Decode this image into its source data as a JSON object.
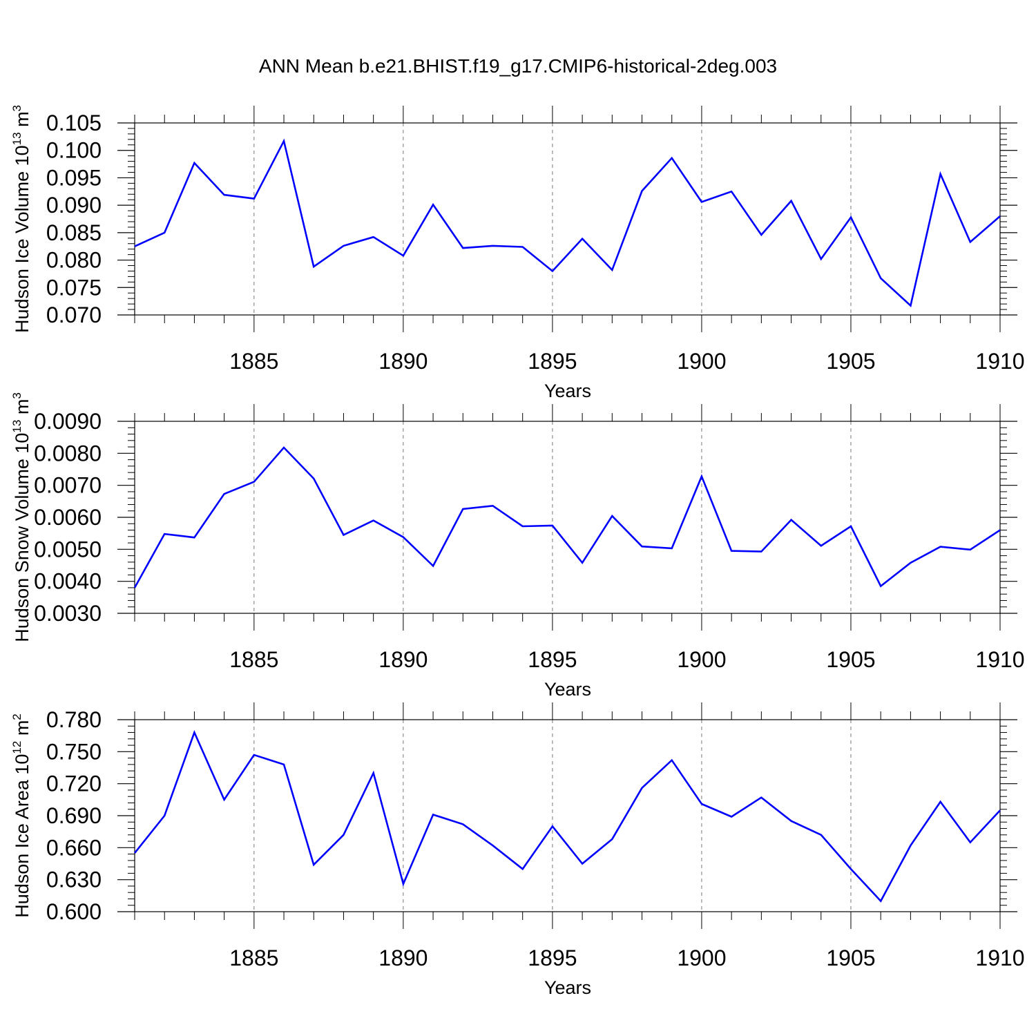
{
  "title": "ANN Mean b.e21.BHIST.f19_g17.CMIP6-historical-2deg.003",
  "colors": {
    "line": "#0000ff",
    "axis": "#000000",
    "grid": "#777777"
  },
  "chart_data": [
    {
      "type": "line",
      "title": "",
      "xlabel": "Years",
      "ylabel_main": "Hudson Ice Volume 10",
      "ylabel_exp": "13",
      "ylabel_unit": "m",
      "ylabel_unit_exp": "3",
      "xlim": [
        1881,
        1910
      ],
      "ylim": [
        0.07,
        0.105
      ],
      "yticks": [
        "0.070",
        "0.075",
        "0.080",
        "0.085",
        "0.090",
        "0.095",
        "0.100",
        "0.105"
      ],
      "ytick_values": [
        0.07,
        0.075,
        0.08,
        0.085,
        0.09,
        0.095,
        0.1,
        0.105
      ],
      "xticks": [
        "1885",
        "1890",
        "1895",
        "1900",
        "1905",
        "1910"
      ],
      "xtick_values": [
        1885,
        1890,
        1895,
        1900,
        1905,
        1910
      ],
      "grid": "vertical dashed at major x ticks",
      "x": [
        1881,
        1882,
        1883,
        1884,
        1885,
        1886,
        1887,
        1888,
        1889,
        1890,
        1891,
        1892,
        1893,
        1894,
        1895,
        1896,
        1897,
        1898,
        1899,
        1900,
        1901,
        1902,
        1903,
        1904,
        1905,
        1906,
        1907,
        1908,
        1909,
        1910
      ],
      "series": [
        {
          "values": [
            0.0825,
            0.085,
            0.0977,
            0.0919,
            0.0912,
            0.1017,
            0.0788,
            0.0826,
            0.0842,
            0.0808,
            0.0901,
            0.0822,
            0.0826,
            0.0824,
            0.078,
            0.0839,
            0.0782,
            0.0926,
            0.0986,
            0.0906,
            0.0925,
            0.0846,
            0.0908,
            0.0802,
            0.0878,
            0.0767,
            0.0717,
            0.0957,
            0.0833,
            0.088
          ]
        }
      ]
    },
    {
      "type": "line",
      "title": "",
      "xlabel": "Years",
      "ylabel_main": "Hudson Snow Volume 10",
      "ylabel_exp": "13",
      "ylabel_unit": "m",
      "ylabel_unit_exp": "3",
      "xlim": [
        1881,
        1910
      ],
      "ylim": [
        0.003,
        0.009
      ],
      "yticks": [
        "0.0030",
        "0.0040",
        "0.0050",
        "0.0060",
        "0.0070",
        "0.0080",
        "0.0090"
      ],
      "ytick_values": [
        0.003,
        0.004,
        0.005,
        0.006,
        0.007,
        0.008,
        0.009
      ],
      "xticks": [
        "1885",
        "1890",
        "1895",
        "1900",
        "1905",
        "1910"
      ],
      "xtick_values": [
        1885,
        1890,
        1895,
        1900,
        1905,
        1910
      ],
      "grid": "vertical dashed at major x ticks",
      "x": [
        1881,
        1882,
        1883,
        1884,
        1885,
        1886,
        1887,
        1888,
        1889,
        1890,
        1891,
        1892,
        1893,
        1894,
        1895,
        1896,
        1897,
        1898,
        1899,
        1900,
        1901,
        1902,
        1903,
        1904,
        1905,
        1906,
        1907,
        1908,
        1909,
        1910
      ],
      "series": [
        {
          "values": [
            0.0038,
            0.00548,
            0.00537,
            0.00673,
            0.00711,
            0.00818,
            0.00721,
            0.00545,
            0.0059,
            0.00538,
            0.00448,
            0.00626,
            0.00636,
            0.00572,
            0.00574,
            0.00458,
            0.00604,
            0.00509,
            0.00503,
            0.00728,
            0.00495,
            0.00493,
            0.00592,
            0.00511,
            0.00572,
            0.00385,
            0.00458,
            0.00508,
            0.00499,
            0.0056
          ]
        }
      ]
    },
    {
      "type": "line",
      "title": "",
      "xlabel": "Years",
      "ylabel_main": "Hudson Ice Area 10",
      "ylabel_exp": "12",
      "ylabel_unit": "m",
      "ylabel_unit_exp": "2",
      "xlim": [
        1881,
        1910
      ],
      "ylim": [
        0.6,
        0.78
      ],
      "yticks": [
        "0.600",
        "0.630",
        "0.660",
        "0.690",
        "0.720",
        "0.750",
        "0.780"
      ],
      "ytick_values": [
        0.6,
        0.63,
        0.66,
        0.69,
        0.72,
        0.75,
        0.78
      ],
      "xticks": [
        "1885",
        "1890",
        "1895",
        "1900",
        "1905",
        "1910"
      ],
      "xtick_values": [
        1885,
        1890,
        1895,
        1900,
        1905,
        1910
      ],
      "grid": "vertical dashed at major x ticks",
      "x": [
        1881,
        1882,
        1883,
        1884,
        1885,
        1886,
        1887,
        1888,
        1889,
        1890,
        1891,
        1892,
        1893,
        1894,
        1895,
        1896,
        1897,
        1898,
        1899,
        1900,
        1901,
        1902,
        1903,
        1904,
        1905,
        1906,
        1907,
        1908,
        1909,
        1910
      ],
      "series": [
        {
          "values": [
            0.655,
            0.69,
            0.768,
            0.705,
            0.747,
            0.738,
            0.644,
            0.672,
            0.73,
            0.626,
            0.691,
            0.682,
            0.662,
            0.64,
            0.68,
            0.645,
            0.668,
            0.716,
            0.742,
            0.701,
            0.689,
            0.707,
            0.685,
            0.672,
            0.64,
            0.61,
            0.662,
            0.703,
            0.665,
            0.695
          ]
        }
      ]
    }
  ]
}
